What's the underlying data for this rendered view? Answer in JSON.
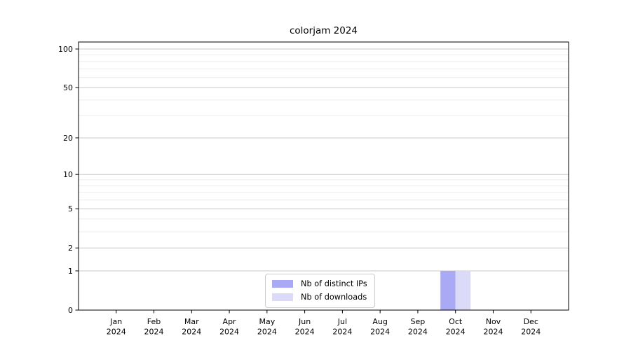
{
  "chart_data": {
    "type": "bar",
    "title": "colorjam 2024",
    "x_categories": [
      "Jan",
      "Feb",
      "Mar",
      "Apr",
      "May",
      "Jun",
      "Jul",
      "Aug",
      "Sep",
      "Oct",
      "Nov",
      "Dec"
    ],
    "x_year": "2024",
    "series": [
      {
        "name": "Nb of distinct IPs",
        "color": "#a9a9f5",
        "values": [
          0,
          0,
          0,
          0,
          0,
          0,
          0,
          0,
          0,
          1,
          0,
          0
        ]
      },
      {
        "name": "Nb of downloads",
        "color": "#dbdbf9",
        "values": [
          0,
          0,
          0,
          0,
          0,
          0,
          0,
          0,
          0,
          1,
          0,
          0
        ]
      }
    ],
    "y_scale": "log1p",
    "ylim": [
      0,
      100
    ],
    "y_major_ticks": [
      0,
      1,
      2,
      5,
      10,
      20,
      50,
      100
    ],
    "y_minor_gridlines": [
      3,
      4,
      6,
      7,
      8,
      9,
      30,
      40,
      60,
      70,
      80,
      90
    ],
    "grid": true,
    "legend_position": "lower center"
  },
  "colors": {
    "background": "#ffffff",
    "axis": "#000000",
    "major_grid": "#c9c9c9",
    "minor_grid": "#ececec",
    "tick_text": "#000000",
    "legend_border": "#cccccc"
  }
}
